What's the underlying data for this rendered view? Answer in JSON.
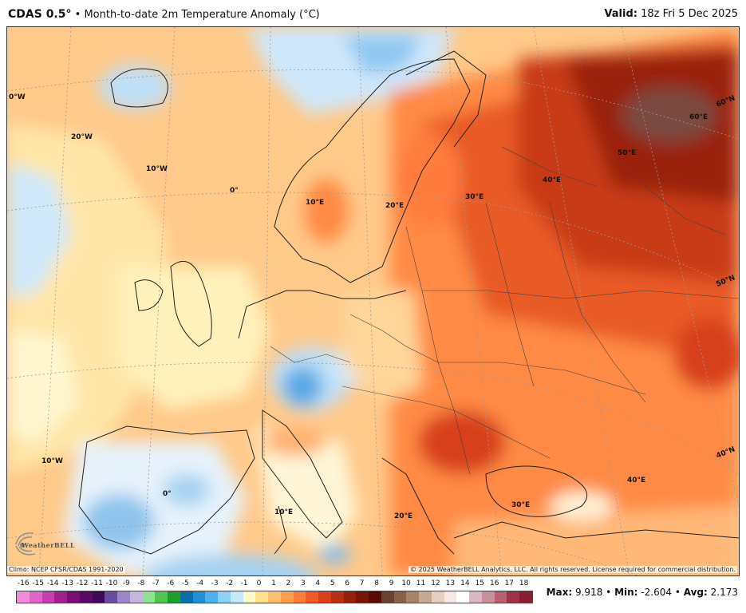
{
  "title": {
    "model": "CDAS 0.5°",
    "separator": "•",
    "description": "Month-to-date 2m Temperature Anomaly (°C)",
    "valid_label": "Valid:",
    "valid_value": "18z Fri 5 Dec 2025"
  },
  "map": {
    "region": "Europe",
    "grid_labels": [
      {
        "text": "0°W",
        "name": "meridian-label-0w-top"
      },
      {
        "text": "20°W",
        "name": "meridian-label-20w"
      },
      {
        "text": "10°W",
        "name": "meridian-label-10w-north"
      },
      {
        "text": "0°",
        "name": "meridian-label-0-north"
      },
      {
        "text": "10°E",
        "name": "meridian-label-10e-north"
      },
      {
        "text": "20°E",
        "name": "meridian-label-20e-north"
      },
      {
        "text": "30°E",
        "name": "meridian-label-30e-north"
      },
      {
        "text": "40°E",
        "name": "meridian-label-40e-north"
      },
      {
        "text": "50°E",
        "name": "meridian-label-50e"
      },
      {
        "text": "60°E",
        "name": "meridian-label-60e"
      },
      {
        "text": "60°N",
        "name": "parallel-label-60n"
      },
      {
        "text": "50°N",
        "name": "parallel-label-50n"
      },
      {
        "text": "40°N",
        "name": "parallel-label-40n"
      },
      {
        "text": "10°W",
        "name": "meridian-label-10w-south"
      },
      {
        "text": "0°",
        "name": "meridian-label-0-south"
      },
      {
        "text": "10°E",
        "name": "meridian-label-10e-south"
      },
      {
        "text": "20°E",
        "name": "meridian-label-20e-south"
      },
      {
        "text": "30°E",
        "name": "meridian-label-30e-south"
      },
      {
        "text": "40°E",
        "name": "meridian-label-40e-south"
      }
    ]
  },
  "footer": {
    "climo": "Climo: NCEP CFSR/CDAS 1991-2020",
    "copyright": "© 2025 WeatherBELL Analytics, LLC. All rights reserved. License required for commercial distribution.",
    "logo_text": "WeatherBELL"
  },
  "colorbar": {
    "labels": [
      "-16",
      "-15",
      "-14",
      "-13",
      "-12",
      "-11",
      "-10",
      "-9",
      "-8",
      "-7",
      "-6",
      "-5",
      "-4",
      "-3",
      "-2",
      "-1",
      "0",
      "1",
      "2",
      "3",
      "4",
      "5",
      "6",
      "7",
      "8",
      "9",
      "10",
      "11",
      "12",
      "13",
      "14",
      "15",
      "16",
      "17",
      "18"
    ],
    "colors": [
      "#f48ad8",
      "#e264c8",
      "#c83cb0",
      "#a0208c",
      "#7a0e74",
      "#5a0a62",
      "#3e0a58",
      "#6a4c9e",
      "#9c88c6",
      "#c4b6dc",
      "#8ee38e",
      "#52c452",
      "#1e9e2c",
      "#0c6ea8",
      "#1f8fd6",
      "#4eb2ee",
      "#8fd0f6",
      "#c6e8fb",
      "#fffbc8",
      "#ffe08c",
      "#ffc070",
      "#ffa050",
      "#ff7c3c",
      "#f05a28",
      "#d8401a",
      "#b82e10",
      "#96200a",
      "#7a1406",
      "#5a0c04",
      "#6a4030",
      "#8a6048",
      "#a8826a",
      "#c8a890",
      "#e6cfc0",
      "#f6e8e2",
      "#ffffff",
      "#d8b8c0",
      "#c8909c",
      "#b86070",
      "#a03048",
      "#882034"
    ]
  },
  "stats": {
    "max_label": "Max:",
    "max_value": "9.918",
    "min_label": "Min:",
    "min_value": "-2.604",
    "avg_label": "Avg:",
    "avg_value": "2.173",
    "separator": "•"
  }
}
